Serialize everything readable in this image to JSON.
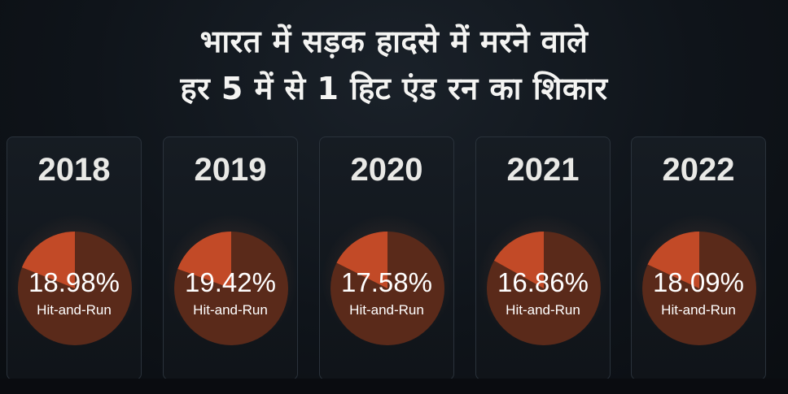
{
  "headline": {
    "line1": "भारत में सड़क हादसे में मरने वाले",
    "line2": "हर 5 में से 1 हिट एंड रन का शिकार"
  },
  "colors": {
    "slice": "#c24a27",
    "remainder": "#5a2a1a",
    "background": "#0f141a"
  },
  "chart_data": {
    "type": "pie",
    "unit": "%",
    "slice_label": "Hit-and-Run",
    "items": [
      {
        "year": "2018",
        "value": 18.98,
        "label": "18.98%"
      },
      {
        "year": "2019",
        "value": 19.42,
        "label": "19.42%"
      },
      {
        "year": "2020",
        "value": 17.58,
        "label": "17.58%"
      },
      {
        "year": "2021",
        "value": 16.86,
        "label": "16.86%"
      },
      {
        "year": "2022",
        "value": 18.09,
        "label": "18.09%"
      }
    ]
  }
}
